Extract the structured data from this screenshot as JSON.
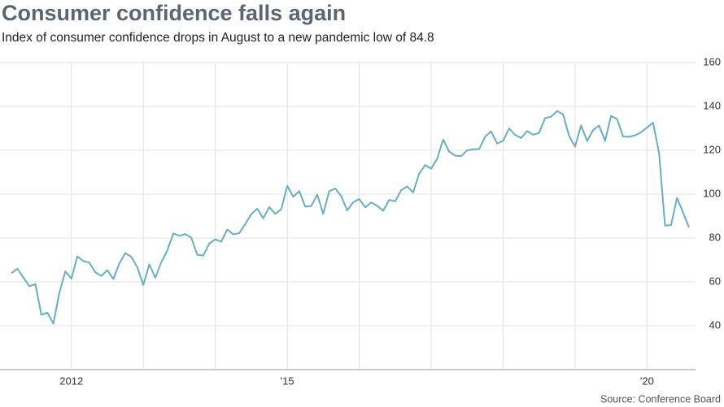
{
  "chart_data": {
    "type": "line",
    "title": "Consumer confidence falls again",
    "subtitle": "Index of consumer confidence drops in August to a new pandemic low of 84.8",
    "source": "Source: Conference Board",
    "categories": [
      null,
      null,
      null,
      null,
      null,
      null,
      null,
      null,
      null,
      null,
      "2012",
      null,
      null,
      null,
      null,
      null,
      null,
      null,
      null,
      null,
      null,
      null,
      null,
      null,
      null,
      null,
      null,
      null,
      null,
      null,
      null,
      null,
      null,
      null,
      null,
      null,
      null,
      null,
      null,
      null,
      null,
      null,
      null,
      null,
      null,
      null,
      "'15",
      null,
      null,
      null,
      null,
      null,
      null,
      null,
      null,
      null,
      null,
      null,
      null,
      null,
      null,
      null,
      null,
      null,
      null,
      null,
      null,
      null,
      null,
      null,
      null,
      null,
      null,
      null,
      null,
      null,
      null,
      null,
      null,
      null,
      null,
      null,
      null,
      null,
      null,
      null,
      null,
      null,
      null,
      null,
      null,
      null,
      null,
      null,
      null,
      null,
      null,
      null,
      null,
      null,
      null,
      null,
      null,
      null,
      null,
      null,
      "'20",
      null,
      null,
      null,
      null,
      null,
      null,
      null
    ],
    "series": [
      {
        "name": "Consumer confidence index",
        "color": "#67afc6",
        "values": [
          64,
          66,
          62,
          58,
          59,
          45,
          46,
          41,
          55,
          64.8,
          61.5,
          71.6,
          69.5,
          68.7,
          64.4,
          62.7,
          65.4,
          61.3,
          68.4,
          73.1,
          71.5,
          66.7,
          58.6,
          68,
          61.9,
          69,
          74.3,
          82.1,
          81,
          81.8,
          80.2,
          72.4,
          72,
          77.5,
          79.4,
          78.3,
          83.9,
          81.7,
          82.2,
          86.4,
          90.9,
          93.4,
          89,
          94.1,
          91,
          93.1,
          103.8,
          98.8,
          101.4,
          94.3,
          94.6,
          99.8,
          91,
          101.3,
          102.6,
          99.1,
          92.6,
          96.3,
          97.8,
          94,
          96.2,
          94.7,
          92.4,
          97.4,
          96.7,
          101.8,
          103.5,
          100.8,
          109.4,
          113.3,
          111.6,
          116.1,
          124.9,
          119.4,
          117.6,
          117.3,
          120,
          120.4,
          120.6,
          126.2,
          128.6,
          123.1,
          124.3,
          130,
          127,
          125.6,
          128.8,
          127.1,
          127.9,
          134.7,
          135.3,
          137.9,
          136.4,
          126.6,
          121.7,
          131.4,
          124.2,
          129.2,
          131.3,
          124.3,
          135.7,
          134.2,
          126.3,
          126.1,
          126.8,
          128.2,
          130.4,
          132.6,
          118.8,
          85.7,
          85.9,
          98.3,
          91.7,
          84.8
        ]
      }
    ],
    "ylim": [
      20,
      160
    ],
    "yticks": [
      40,
      60,
      80,
      100,
      120,
      140,
      160
    ],
    "grid": true
  }
}
